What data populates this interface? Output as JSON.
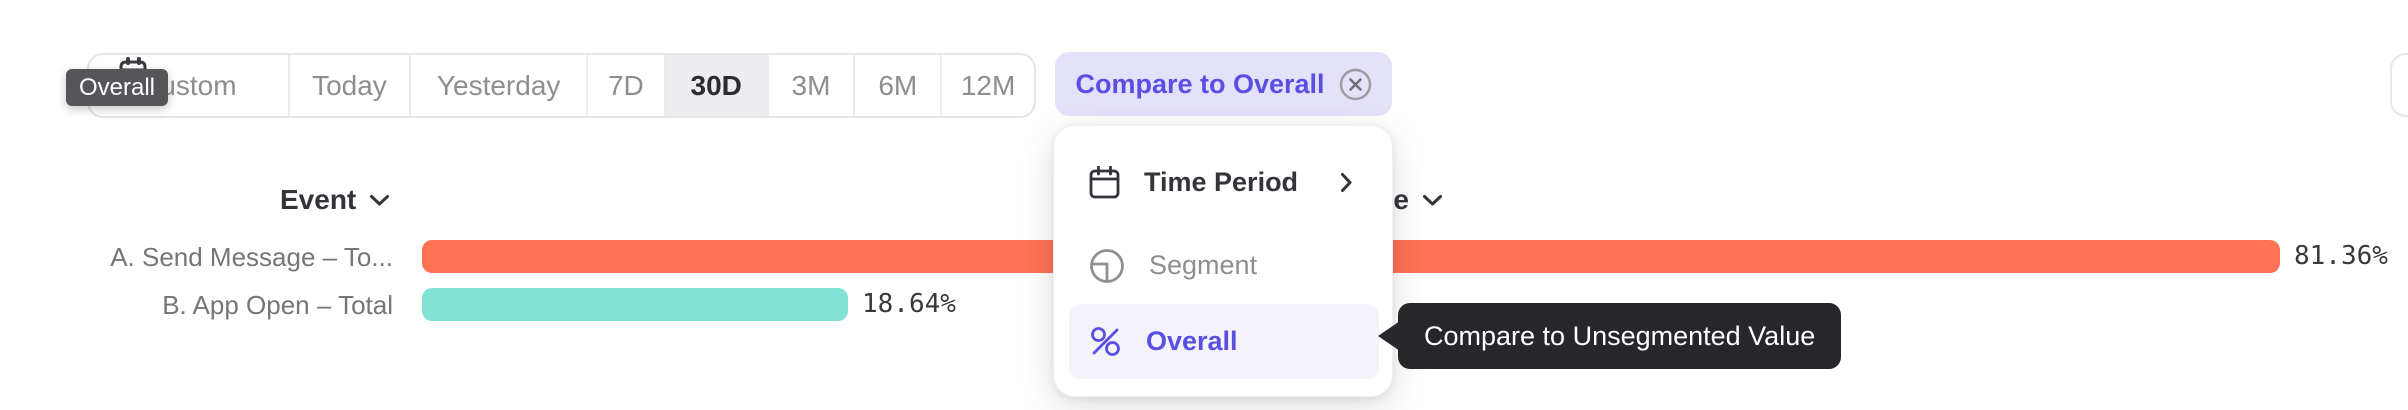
{
  "toolbar": {
    "time_ranges": [
      {
        "label": "Custom",
        "selected": false
      },
      {
        "label": "Today",
        "selected": false
      },
      {
        "label": "Yesterday",
        "selected": false
      },
      {
        "label": "7D",
        "selected": false
      },
      {
        "label": "30D",
        "selected": true
      },
      {
        "label": "3M",
        "selected": false
      },
      {
        "label": "6M",
        "selected": false
      },
      {
        "label": "12M",
        "selected": false
      }
    ],
    "compare_label": "Compare to Overall"
  },
  "tooltips": {
    "overall": "Overall",
    "compare_unsegmented": "Compare to Unsegmented Value"
  },
  "dropdown": {
    "items": [
      {
        "label": "Time Period",
        "icon": "calendar-icon",
        "has_submenu": true,
        "state": "normal"
      },
      {
        "label": "Segment",
        "icon": "segment-icon",
        "has_submenu": false,
        "state": "disabled"
      },
      {
        "label": "Overall",
        "icon": "percent-icon",
        "has_submenu": false,
        "state": "selected"
      }
    ]
  },
  "chart": {
    "event_header": "Event",
    "value_header": "Value",
    "rows": [
      {
        "label": "A. Send Message – To...",
        "value": 81.36,
        "value_display": "81.36%",
        "color": "#FF7253"
      },
      {
        "label": "B. App Open – Total",
        "value": 18.64,
        "value_display": "18.64%",
        "color": "#81E1D4"
      }
    ]
  },
  "chart_data": {
    "type": "bar",
    "orientation": "horizontal",
    "categories": [
      "A. Send Message – To...",
      "B. App Open – Total"
    ],
    "values": [
      81.36,
      18.64
    ],
    "value_labels": [
      "81.36%",
      "18.64%"
    ],
    "colors": [
      "#FF7253",
      "#81E1D4"
    ],
    "title": "",
    "xlabel": "Value",
    "ylabel": "Event",
    "xlim": [
      0,
      100
    ],
    "grid": false,
    "legend": false
  },
  "colors": {
    "accent_purple": "#5A4FE3",
    "accent_lavender": "#E4E1FA",
    "bar_orange": "#FF7253",
    "bar_teal": "#81E1D4",
    "tooltip_dark": "#26262B",
    "tooltip_gray": "#56565A"
  }
}
